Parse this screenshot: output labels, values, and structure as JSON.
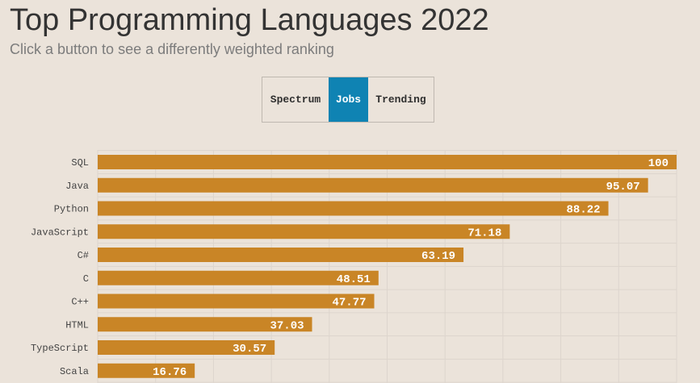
{
  "header": {
    "title": "Top Programming Languages 2022",
    "subtitle": "Click a button to see a differently weighted ranking"
  },
  "controls": {
    "buttons": [
      {
        "label": "Spectrum",
        "active": false
      },
      {
        "label": "Jobs",
        "active": true
      },
      {
        "label": "Trending",
        "active": false
      }
    ]
  },
  "colors": {
    "background": "#ebe3da",
    "bar": "#c98526",
    "active_button": "#0f83b3",
    "grid": "#ddd5cd"
  },
  "chart_data": {
    "type": "bar",
    "orientation": "horizontal",
    "categories": [
      "SQL",
      "Java",
      "Python",
      "JavaScript",
      "C#",
      "C",
      "C++",
      "HTML",
      "TypeScript",
      "Scala"
    ],
    "values": [
      100,
      95.07,
      88.22,
      71.18,
      63.19,
      48.51,
      47.77,
      37.03,
      30.57,
      16.76
    ],
    "value_labels": [
      "100",
      "95.07",
      "88.22",
      "71.18",
      "63.19",
      "48.51",
      "47.77",
      "37.03",
      "30.57",
      "16.76"
    ],
    "xlim": [
      0,
      100
    ],
    "grid": true,
    "legend": "none"
  }
}
